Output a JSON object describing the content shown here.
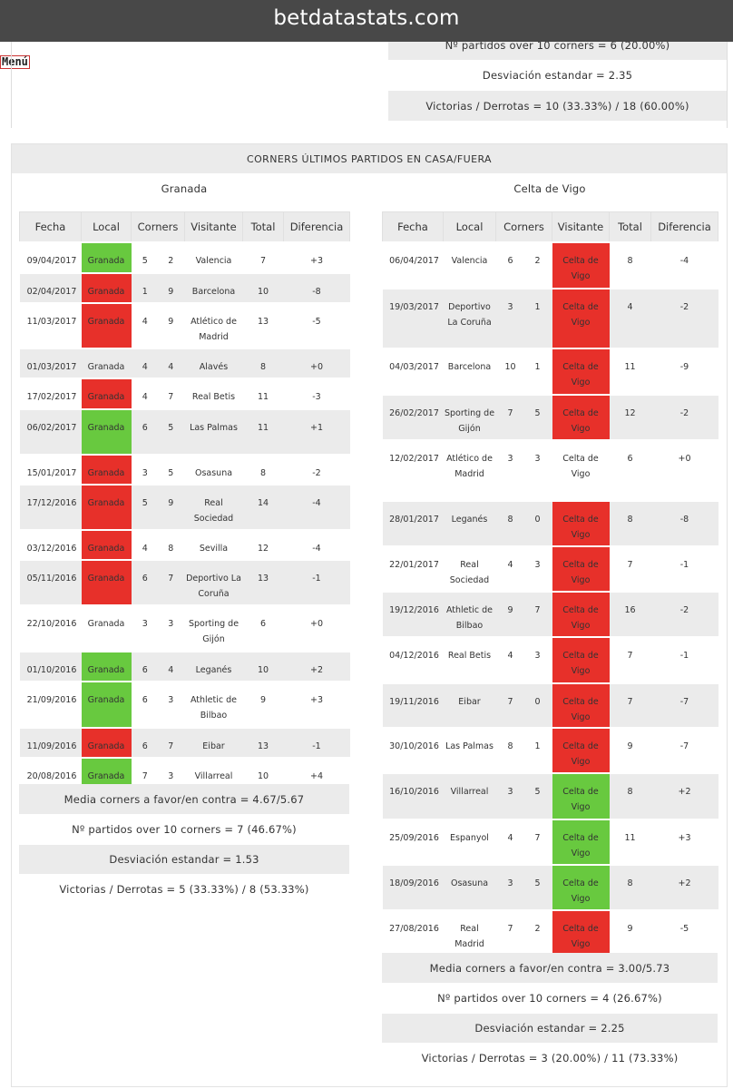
{
  "site_title": "betdatastats.com",
  "menu_label": "Menú",
  "prev_stats": [
    "Nº partidos over 10 corners = 6 (20.00%)",
    "Desviación estandar = 2.35",
    "Victorias / Derrotas = 10 (33.33%) / 18 (60.00%)"
  ],
  "section_title": "CORNERS ÚLTIMOS PARTIDOS EN CASA/FUERA",
  "columns": [
    "Fecha",
    "Local",
    "Corners",
    "Visitante",
    "Total",
    "Diferencia"
  ],
  "colors": {
    "win": "#68c93f",
    "loss": "#e7302a",
    "stripe": "#ebebeb"
  },
  "granada": {
    "team": "Granada",
    "rows": [
      {
        "fecha": "09/04/2017",
        "local": "Granada",
        "c1": "5",
        "c2": "2",
        "visitante": "Valencia",
        "total": "7",
        "dif": "+3",
        "result": "win"
      },
      {
        "fecha": "02/04/2017",
        "local": "Granada",
        "c1": "1",
        "c2": "9",
        "visitante": "Barcelona",
        "total": "10",
        "dif": "-8",
        "result": "loss"
      },
      {
        "fecha": "11/03/2017",
        "local": "Granada",
        "c1": "4",
        "c2": "9",
        "visitante": "Atlético de Madrid",
        "total": "13",
        "dif": "-5",
        "result": "loss"
      },
      {
        "fecha": "01/03/2017",
        "local": "Granada",
        "c1": "4",
        "c2": "4",
        "visitante": "Alavés",
        "total": "8",
        "dif": "+0",
        "result": "draw"
      },
      {
        "fecha": "17/02/2017",
        "local": "Granada",
        "c1": "4",
        "c2": "7",
        "visitante": "Real Betis",
        "total": "11",
        "dif": "-3",
        "result": "loss"
      },
      {
        "fecha": "06/02/2017",
        "local": "Granada",
        "c1": "6",
        "c2": "5",
        "visitante": "Las Palmas",
        "total": "11",
        "dif": "+1",
        "result": "win"
      },
      {
        "fecha": "15/01/2017",
        "local": "Granada",
        "c1": "3",
        "c2": "5",
        "visitante": "Osasuna",
        "total": "8",
        "dif": "-2",
        "result": "loss"
      },
      {
        "fecha": "17/12/2016",
        "local": "Granada",
        "c1": "5",
        "c2": "9",
        "visitante": "Real Sociedad",
        "total": "14",
        "dif": "-4",
        "result": "loss"
      },
      {
        "fecha": "03/12/2016",
        "local": "Granada",
        "c1": "4",
        "c2": "8",
        "visitante": "Sevilla",
        "total": "12",
        "dif": "-4",
        "result": "loss"
      },
      {
        "fecha": "05/11/2016",
        "local": "Granada",
        "c1": "6",
        "c2": "7",
        "visitante": "Deportivo La Coruña",
        "total": "13",
        "dif": "-1",
        "result": "loss"
      },
      {
        "fecha": "22/10/2016",
        "local": "Granada",
        "c1": "3",
        "c2": "3",
        "visitante": "Sporting de Gijón",
        "total": "6",
        "dif": "+0",
        "result": "draw"
      },
      {
        "fecha": "01/10/2016",
        "local": "Granada",
        "c1": "6",
        "c2": "4",
        "visitante": "Leganés",
        "total": "10",
        "dif": "+2",
        "result": "win"
      },
      {
        "fecha": "21/09/2016",
        "local": "Granada",
        "c1": "6",
        "c2": "3",
        "visitante": "Athletic de Bilbao",
        "total": "9",
        "dif": "+3",
        "result": "win"
      },
      {
        "fecha": "11/09/2016",
        "local": "Granada",
        "c1": "6",
        "c2": "7",
        "visitante": "Eibar",
        "total": "13",
        "dif": "-1",
        "result": "loss"
      },
      {
        "fecha": "20/08/2016",
        "local": "Granada",
        "c1": "7",
        "c2": "3",
        "visitante": "Villarreal",
        "total": "10",
        "dif": "+4",
        "result": "win"
      }
    ],
    "stats": [
      "Media corners a favor/en contra = 4.67/5.67",
      "Nº partidos over 10 corners = 7 (46.67%)",
      "Desviación estandar = 1.53",
      "Victorias / Derrotas = 5 (33.33%) / 8 (53.33%)"
    ]
  },
  "celta": {
    "team": "Celta de Vigo",
    "rows": [
      {
        "fecha": "06/04/2017",
        "local": "Valencia",
        "c1": "6",
        "c2": "2",
        "visitante": "Celta de Vigo",
        "total": "8",
        "dif": "-4",
        "result": "loss"
      },
      {
        "fecha": "19/03/2017",
        "local": "Deportivo La Coruña",
        "c1": "3",
        "c2": "1",
        "visitante": "Celta de Vigo",
        "total": "4",
        "dif": "-2",
        "result": "loss"
      },
      {
        "fecha": "04/03/2017",
        "local": "Barcelona",
        "c1": "10",
        "c2": "1",
        "visitante": "Celta de Vigo",
        "total": "11",
        "dif": "-9",
        "result": "loss"
      },
      {
        "fecha": "26/02/2017",
        "local": "Sporting de Gijón",
        "c1": "7",
        "c2": "5",
        "visitante": "Celta de Vigo",
        "total": "12",
        "dif": "-2",
        "result": "loss"
      },
      {
        "fecha": "12/02/2017",
        "local": "Atlético de Madrid",
        "c1": "3",
        "c2": "3",
        "visitante": "Celta de Vigo",
        "total": "6",
        "dif": "+0",
        "result": "draw"
      },
      {
        "fecha": "28/01/2017",
        "local": "Leganés",
        "c1": "8",
        "c2": "0",
        "visitante": "Celta de Vigo",
        "total": "8",
        "dif": "-8",
        "result": "loss"
      },
      {
        "fecha": "22/01/2017",
        "local": "Real Sociedad",
        "c1": "4",
        "c2": "3",
        "visitante": "Celta de Vigo",
        "total": "7",
        "dif": "-1",
        "result": "loss"
      },
      {
        "fecha": "19/12/2016",
        "local": "Athletic de Bilbao",
        "c1": "9",
        "c2": "7",
        "visitante": "Celta de Vigo",
        "total": "16",
        "dif": "-2",
        "result": "loss"
      },
      {
        "fecha": "04/12/2016",
        "local": "Real Betis",
        "c1": "4",
        "c2": "3",
        "visitante": "Celta de Vigo",
        "total": "7",
        "dif": "-1",
        "result": "loss"
      },
      {
        "fecha": "19/11/2016",
        "local": "Eibar",
        "c1": "7",
        "c2": "0",
        "visitante": "Celta de Vigo",
        "total": "7",
        "dif": "-7",
        "result": "loss"
      },
      {
        "fecha": "30/10/2016",
        "local": "Las Palmas",
        "c1": "8",
        "c2": "1",
        "visitante": "Celta de Vigo",
        "total": "9",
        "dif": "-7",
        "result": "loss"
      },
      {
        "fecha": "16/10/2016",
        "local": "Villarreal",
        "c1": "3",
        "c2": "5",
        "visitante": "Celta de Vigo",
        "total": "8",
        "dif": "+2",
        "result": "win"
      },
      {
        "fecha": "25/09/2016",
        "local": "Espanyol",
        "c1": "4",
        "c2": "7",
        "visitante": "Celta de Vigo",
        "total": "11",
        "dif": "+3",
        "result": "win"
      },
      {
        "fecha": "18/09/2016",
        "local": "Osasuna",
        "c1": "3",
        "c2": "5",
        "visitante": "Celta de Vigo",
        "total": "8",
        "dif": "+2",
        "result": "win"
      },
      {
        "fecha": "27/08/2016",
        "local": "Real Madrid",
        "c1": "7",
        "c2": "2",
        "visitante": "Celta de Vigo",
        "total": "9",
        "dif": "-5",
        "result": "loss"
      }
    ],
    "stats": [
      "Media corners a favor/en contra = 3.00/5.73",
      "Nº partidos over 10 corners = 4 (26.67%)",
      "Desviación estandar = 2.25",
      "Victorias / Derrotas = 3 (20.00%) / 11 (73.33%)"
    ]
  }
}
